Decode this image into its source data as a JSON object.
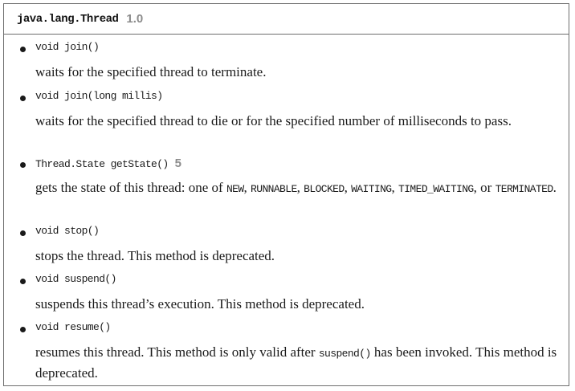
{
  "header": {
    "class_name": "java.lang.Thread",
    "version": "1.0"
  },
  "methods": [
    {
      "signature": "void join()",
      "description": "waits for the specified thread to terminate."
    },
    {
      "signature": "void join(long millis)",
      "description": "waits for the specified thread to die or for the specified number of milliseconds to pass."
    },
    {
      "signature": "Thread.State getState()",
      "since": "5",
      "description_prefix": "gets the state of this thread: one of ",
      "states": [
        "NEW",
        "RUNNABLE",
        "BLOCKED",
        "WAITING",
        "TIMED_WAITING",
        "TERMINATED"
      ],
      "sep_comma": ", ",
      "sep_or": ", or ",
      "description_suffix": "."
    },
    {
      "signature": "void stop()",
      "description": "stops the thread. This method is deprecated."
    },
    {
      "signature": "void suspend()",
      "description": "suspends this thread’s execution. This method is deprecated."
    },
    {
      "signature": "void resume()",
      "description_prefix": "resumes this thread. This method is only valid after ",
      "code_ref": "suspend()",
      "description_suffix": " has been invoked. This method is deprecated."
    }
  ]
}
